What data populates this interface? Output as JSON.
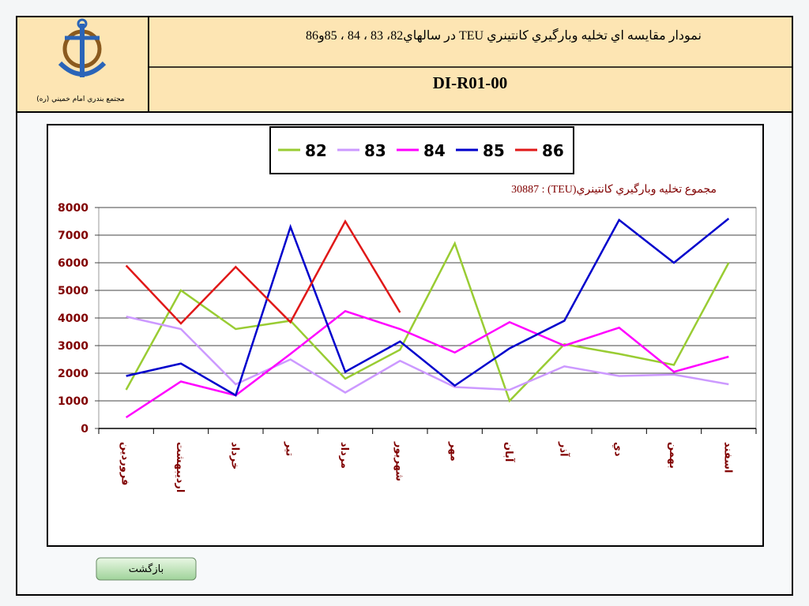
{
  "header": {
    "title": "نمودار مقايسه اي تخليه وبارگيري كانتينري TEU در سالهاي82، 83 ، 84 ، 85و86",
    "code": "DI-R01-00",
    "logo_caption": "مجتمع بندري امام خميني (ره)"
  },
  "button": "بازگشت",
  "chart_data": {
    "type": "line",
    "annotation": "مجموع تخليه وبارگيري كانتينري(TEU) : 30887",
    "categories": [
      "فروردين",
      "ارديبهشت",
      "خرداد",
      "تير",
      "مرداد",
      "شهريور",
      "مهر",
      "آبان",
      "آذر",
      "دي",
      "بهمن",
      "اسفند"
    ],
    "series": [
      {
        "name": "82",
        "color": "#99cc33",
        "values": [
          1400,
          5000,
          3600,
          3900,
          1800,
          2850,
          6700,
          1000,
          3050,
          2700,
          2300,
          6000
        ]
      },
      {
        "name": "83",
        "color": "#cc99ff",
        "values": [
          4050,
          3600,
          1600,
          2500,
          1300,
          2450,
          1500,
          1400,
          2250,
          1900,
          1950,
          1600
        ]
      },
      {
        "name": "84",
        "color": "#ff00ff",
        "values": [
          400,
          1700,
          1200,
          2700,
          4250,
          3600,
          2750,
          3850,
          3000,
          3650,
          2050,
          2600
        ]
      },
      {
        "name": "85",
        "color": "#0000cc",
        "values": [
          1900,
          2350,
          1200,
          7300,
          2050,
          3150,
          1550,
          2900,
          3900,
          7550,
          6000,
          7600
        ]
      },
      {
        "name": "86",
        "color": "#e01818",
        "values": [
          5900,
          3800,
          5850,
          3850,
          7500,
          4200,
          null,
          null,
          null,
          null,
          null,
          null
        ]
      }
    ],
    "ylim": [
      0,
      8000
    ],
    "yticks": [
      0,
      1000,
      2000,
      3000,
      4000,
      5000,
      6000,
      7000,
      8000
    ],
    "grid": true,
    "legend": "top"
  }
}
